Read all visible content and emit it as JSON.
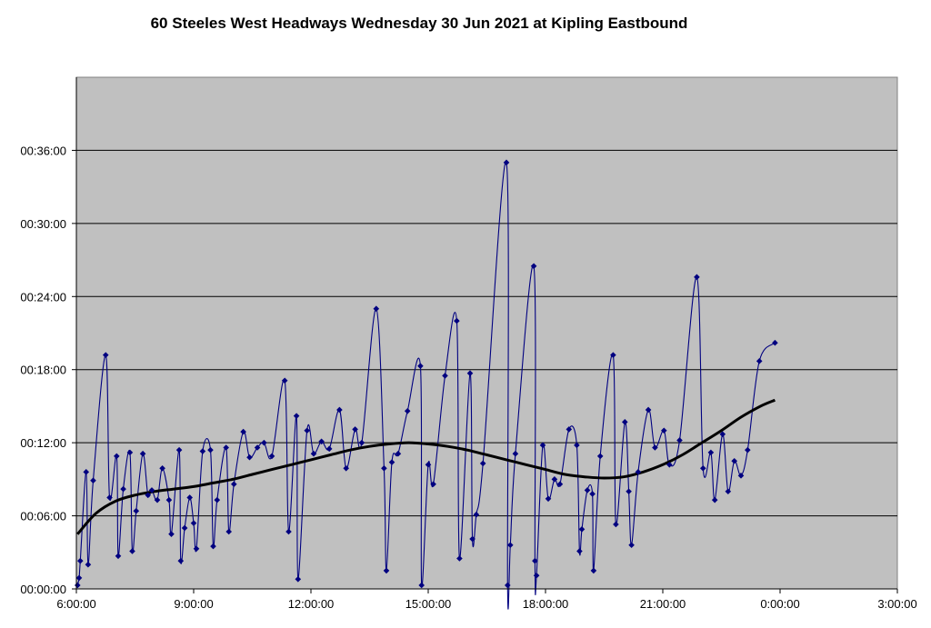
{
  "chart_data": {
    "type": "line",
    "title": "60 Steeles West Headways Wednesday 30 Jun 2021 at Kipling Eastbound",
    "xlabel": "",
    "ylabel": "",
    "x_unit": "time of day (hours, 6.0 = 6:00:00, 24.0 = 0:00:00 next day)",
    "y_unit": "headway (minutes)",
    "xlim": [
      6,
      27
    ],
    "ylim": [
      0,
      42
    ],
    "grid": "horizontal",
    "legend": "none",
    "x_ticks": [
      {
        "value": 6,
        "label": "6:00:00"
      },
      {
        "value": 9,
        "label": "9:00:00"
      },
      {
        "value": 12,
        "label": "12:00:00"
      },
      {
        "value": 15,
        "label": "15:00:00"
      },
      {
        "value": 18,
        "label": "18:00:00"
      },
      {
        "value": 21,
        "label": "21:00:00"
      },
      {
        "value": 24,
        "label": "0:00:00"
      },
      {
        "value": 27,
        "label": "3:00:00"
      }
    ],
    "y_ticks": [
      {
        "value": 0,
        "label": "00:00:00"
      },
      {
        "value": 6,
        "label": "00:06:00"
      },
      {
        "value": 12,
        "label": "00:12:00"
      },
      {
        "value": 18,
        "label": "00:18:00"
      },
      {
        "value": 24,
        "label": "00:24:00"
      },
      {
        "value": 30,
        "label": "00:30:00"
      },
      {
        "value": 36,
        "label": "00:36:00"
      }
    ],
    "colors": {
      "plot_background": "#c0c0c0",
      "series": "#000080",
      "trend": "#000000",
      "grid": "#000000"
    },
    "series": [
      {
        "values": [
          [
            6.03,
            0.3
          ],
          [
            6.07,
            0.9
          ],
          [
            6.1,
            2.3
          ],
          [
            6.25,
            9.6
          ],
          [
            6.3,
            2.0
          ],
          [
            6.43,
            8.9
          ],
          [
            6.75,
            19.2
          ],
          [
            6.85,
            7.5
          ],
          [
            7.03,
            10.9
          ],
          [
            7.07,
            2.7
          ],
          [
            7.2,
            8.2
          ],
          [
            7.37,
            11.2
          ],
          [
            7.43,
            3.1
          ],
          [
            7.53,
            6.4
          ],
          [
            7.7,
            11.1
          ],
          [
            7.83,
            7.7
          ],
          [
            7.93,
            8.1
          ],
          [
            8.07,
            7.3
          ],
          [
            8.2,
            9.9
          ],
          [
            8.37,
            7.3
          ],
          [
            8.43,
            4.5
          ],
          [
            8.63,
            11.4
          ],
          [
            8.67,
            2.3
          ],
          [
            8.77,
            5.0
          ],
          [
            8.9,
            7.5
          ],
          [
            9.0,
            5.4
          ],
          [
            9.07,
            3.3
          ],
          [
            9.23,
            11.3
          ],
          [
            9.43,
            11.4
          ],
          [
            9.5,
            3.5
          ],
          [
            9.6,
            7.3
          ],
          [
            9.83,
            11.6
          ],
          [
            9.9,
            4.7
          ],
          [
            10.03,
            8.6
          ],
          [
            10.27,
            12.9
          ],
          [
            10.43,
            10.8
          ],
          [
            10.63,
            11.6
          ],
          [
            10.8,
            12.0
          ],
          [
            11.0,
            10.9
          ],
          [
            11.33,
            17.1
          ],
          [
            11.43,
            4.7
          ],
          [
            11.63,
            14.2
          ],
          [
            11.67,
            0.8
          ],
          [
            11.9,
            13.0
          ],
          [
            12.07,
            11.1
          ],
          [
            12.27,
            12.1
          ],
          [
            12.47,
            11.5
          ],
          [
            12.73,
            14.7
          ],
          [
            12.9,
            9.9
          ],
          [
            13.13,
            13.1
          ],
          [
            13.3,
            12.0
          ],
          [
            13.67,
            23.0
          ],
          [
            13.87,
            9.9
          ],
          [
            13.93,
            1.5
          ],
          [
            14.07,
            10.4
          ],
          [
            14.23,
            11.1
          ],
          [
            14.47,
            14.6
          ],
          [
            14.8,
            18.3
          ],
          [
            14.83,
            0.3
          ],
          [
            15.0,
            10.2
          ],
          [
            15.13,
            8.6
          ],
          [
            15.43,
            17.5
          ],
          [
            15.73,
            22.0
          ],
          [
            15.8,
            2.5
          ],
          [
            16.07,
            17.7
          ],
          [
            16.13,
            4.1
          ],
          [
            16.23,
            6.1
          ],
          [
            16.4,
            10.3
          ],
          [
            17.0,
            35.0
          ],
          [
            17.03,
            0.3
          ],
          [
            17.1,
            3.6
          ],
          [
            17.23,
            11.1
          ],
          [
            17.7,
            26.5
          ],
          [
            17.73,
            2.3
          ],
          [
            17.77,
            1.1
          ],
          [
            17.93,
            11.8
          ],
          [
            18.07,
            7.4
          ],
          [
            18.23,
            9.0
          ],
          [
            18.37,
            8.6
          ],
          [
            18.6,
            13.1
          ],
          [
            18.8,
            11.8
          ],
          [
            18.87,
            3.1
          ],
          [
            18.93,
            4.9
          ],
          [
            19.07,
            8.1
          ],
          [
            19.2,
            7.8
          ],
          [
            19.23,
            1.5
          ],
          [
            19.4,
            10.9
          ],
          [
            19.73,
            19.2
          ],
          [
            19.8,
            5.3
          ],
          [
            20.03,
            13.7
          ],
          [
            20.13,
            8.0
          ],
          [
            20.2,
            3.6
          ],
          [
            20.37,
            9.6
          ],
          [
            20.63,
            14.7
          ],
          [
            20.8,
            11.6
          ],
          [
            21.03,
            13.0
          ],
          [
            21.17,
            10.2
          ],
          [
            21.43,
            12.2
          ],
          [
            21.87,
            25.6
          ],
          [
            22.03,
            9.9
          ],
          [
            22.23,
            11.2
          ],
          [
            22.33,
            7.3
          ],
          [
            22.53,
            12.7
          ],
          [
            22.67,
            8.0
          ],
          [
            22.83,
            10.5
          ],
          [
            23.0,
            9.3
          ],
          [
            23.17,
            11.4
          ],
          [
            23.47,
            18.7
          ],
          [
            23.87,
            20.2
          ]
        ]
      },
      {
        "values": [
          [
            6.03,
            4.5
          ],
          [
            6.5,
            6.2
          ],
          [
            7.0,
            7.2
          ],
          [
            7.5,
            7.7
          ],
          [
            8.0,
            8.0
          ],
          [
            8.5,
            8.2
          ],
          [
            9.0,
            8.4
          ],
          [
            9.5,
            8.7
          ],
          [
            10.0,
            9.0
          ],
          [
            10.5,
            9.4
          ],
          [
            11.0,
            9.8
          ],
          [
            11.5,
            10.2
          ],
          [
            12.0,
            10.6
          ],
          [
            12.5,
            11.0
          ],
          [
            13.0,
            11.4
          ],
          [
            13.5,
            11.7
          ],
          [
            14.0,
            11.9
          ],
          [
            14.5,
            12.0
          ],
          [
            15.0,
            11.9
          ],
          [
            15.5,
            11.7
          ],
          [
            16.0,
            11.4
          ],
          [
            16.5,
            11.0
          ],
          [
            17.0,
            10.6
          ],
          [
            17.5,
            10.2
          ],
          [
            18.0,
            9.8
          ],
          [
            18.5,
            9.4
          ],
          [
            19.0,
            9.2
          ],
          [
            19.5,
            9.1
          ],
          [
            20.0,
            9.2
          ],
          [
            20.5,
            9.6
          ],
          [
            21.0,
            10.2
          ],
          [
            21.5,
            11.0
          ],
          [
            22.0,
            12.0
          ],
          [
            22.5,
            13.0
          ],
          [
            23.0,
            14.1
          ],
          [
            23.5,
            15.0
          ],
          [
            23.87,
            15.5
          ]
        ]
      }
    ]
  }
}
